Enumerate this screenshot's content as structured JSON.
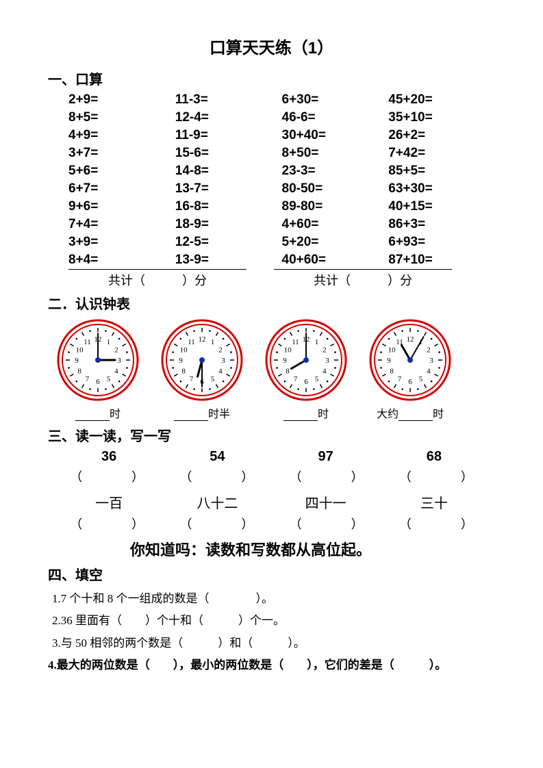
{
  "title": "口算天天练（1）",
  "section1": {
    "heading": "一、口算",
    "rows": [
      [
        "2+9=",
        "11-3=",
        "6+30=",
        "45+20="
      ],
      [
        "8+5=",
        "12-4=",
        "46-6=",
        "35+10="
      ],
      [
        "4+9=",
        "11-9=",
        "30+40=",
        "26+2="
      ],
      [
        "3+7=",
        "15-6=",
        "8+50=",
        "7+42="
      ],
      [
        "5+6=",
        "14-8=",
        "23-3=",
        "85+5="
      ],
      [
        "6+7=",
        "13-7=",
        "80-50=",
        "63+30="
      ],
      [
        "9+6=",
        "16-8=",
        "89-80=",
        "40+15="
      ],
      [
        "7+4=",
        "18-9=",
        "4+60=",
        "86+3="
      ],
      [
        "3+9=",
        "12-5=",
        "5+20=",
        "6+93="
      ],
      [
        "8+4=",
        "13-9=",
        "40+60=",
        "87+10="
      ]
    ],
    "score_label": "共计（　　　）分"
  },
  "section2": {
    "heading": "二．认识钟表",
    "clocks": [
      {
        "hour_angle": 90,
        "minute_angle": 0,
        "label_prefix": "",
        "label_suffix": "时"
      },
      {
        "hour_angle": 195,
        "minute_angle": 180,
        "label_prefix": "",
        "label_suffix": "时半"
      },
      {
        "hour_angle": 240,
        "minute_angle": 0,
        "label_prefix": "",
        "label_suffix": "时"
      },
      {
        "hour_angle": 330,
        "minute_angle": 30,
        "label_prefix": "大约",
        "label_suffix": "时"
      }
    ],
    "clock_style": {
      "outer_rim_color": "#d40000",
      "face_color": "#ffffff",
      "tick_color": "#000000",
      "hand_color": "#000000",
      "center_dot_color": "#1030a0",
      "radius": 55
    }
  },
  "section3": {
    "heading": "三、读一读，写一写",
    "numbers": [
      "36",
      "54",
      "97",
      "68"
    ],
    "words": [
      "一百",
      "八十二",
      "四十一",
      "三十"
    ],
    "paren": "（　　　　）",
    "tip": "你知道吗：读数和写数都从高位起。"
  },
  "section4": {
    "heading": "四、填空",
    "q1": "1.7 个十和 8 个一组成的数是（　　　　）。",
    "q2": "2.36 里面有（　　）个十和（　　　）个一。",
    "q3": "3.与 50 相邻的两个数是（　　　）和（　　　）。",
    "q4": "4.最大的两位数是（　　），最小的两位数是（　　），它们的差是（　　　）。"
  }
}
